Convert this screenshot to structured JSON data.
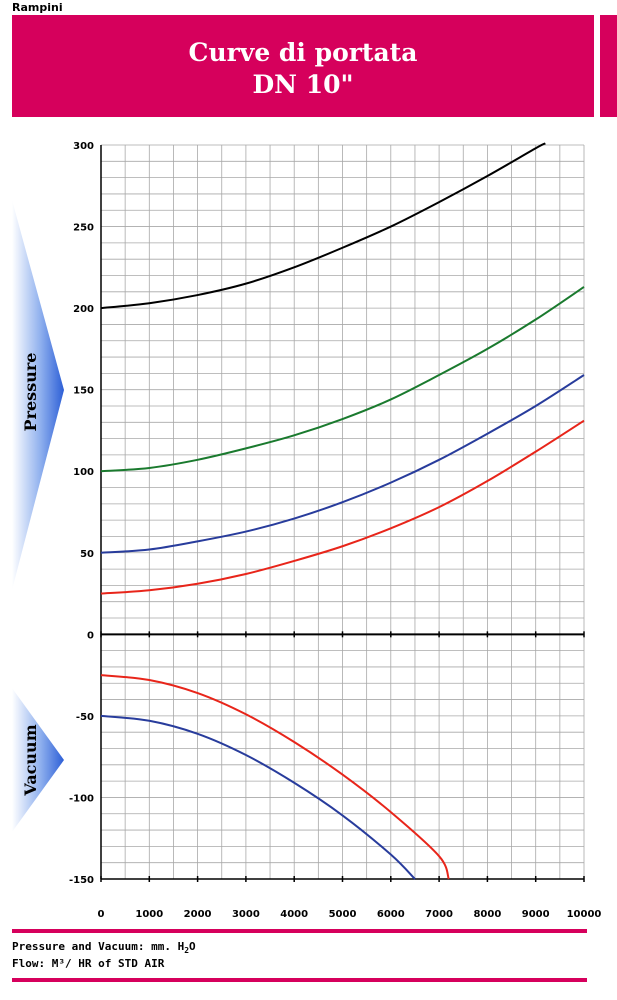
{
  "header": {
    "brand": "Rampini",
    "title_line1": "Curve di portata",
    "title_line2": "DN 10\""
  },
  "side_labels": {
    "pressure": "Pressure",
    "vacuum": "Vacuum"
  },
  "footer": {
    "line1_prefix": "Pressure and Vacuum: mm. H",
    "line1_sub": "2",
    "line1_suffix": "O",
    "line2": "Flow: M³/ HR of STD AIR"
  },
  "colors": {
    "banner": "#d6005c",
    "black_series": "#000000",
    "green_series": "#1a7a2e",
    "blue_series": "#283c9c",
    "red_series": "#e8251a"
  },
  "chart_data": {
    "type": "line",
    "title": "",
    "xlabel": "",
    "ylabel": "",
    "xlim": [
      0,
      10000
    ],
    "ylim": [
      -150,
      300
    ],
    "x_ticks": [
      0,
      1000,
      2000,
      3000,
      4000,
      5000,
      6000,
      7000,
      8000,
      9000,
      10000
    ],
    "y_ticks": [
      300,
      250,
      200,
      150,
      100,
      50,
      0,
      -50,
      -100,
      -150
    ],
    "grid": true,
    "series": [
      {
        "color": "black",
        "x": [
          0,
          1000,
          2000,
          3000,
          4000,
          5000,
          6000,
          7000,
          8000,
          9000,
          9200
        ],
        "y": [
          200,
          203,
          208,
          215,
          225,
          237,
          250,
          265,
          281,
          298,
          301
        ]
      },
      {
        "color": "green",
        "x": [
          0,
          1000,
          2000,
          3000,
          4000,
          5000,
          6000,
          7000,
          8000,
          9000,
          10000
        ],
        "y": [
          100,
          102,
          107,
          114,
          122,
          132,
          144,
          159,
          175,
          193,
          213
        ]
      },
      {
        "color": "blue",
        "x": [
          0,
          1000,
          2000,
          3000,
          4000,
          5000,
          6000,
          7000,
          8000,
          9000,
          10000
        ],
        "y": [
          50,
          52,
          57,
          63,
          71,
          81,
          93,
          107,
          123,
          140,
          159
        ]
      },
      {
        "color": "red",
        "x": [
          0,
          1000,
          2000,
          3000,
          4000,
          5000,
          6000,
          7000,
          8000,
          9000,
          10000
        ],
        "y": [
          25,
          27,
          31,
          37,
          45,
          54,
          65,
          78,
          94,
          112,
          131
        ]
      },
      {
        "color": "red",
        "x": [
          0,
          1000,
          2000,
          3000,
          4000,
          5000,
          6000,
          7000,
          7200
        ],
        "y": [
          -25,
          -28,
          -36,
          -49,
          -66,
          -86,
          -109,
          -136,
          -150
        ]
      },
      {
        "color": "blue",
        "x": [
          0,
          1000,
          2000,
          3000,
          4000,
          5000,
          6000,
          6500
        ],
        "y": [
          -50,
          -53,
          -61,
          -74,
          -91,
          -111,
          -135,
          -150
        ]
      }
    ]
  }
}
